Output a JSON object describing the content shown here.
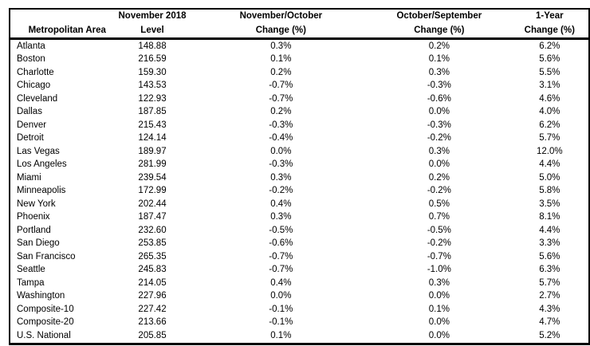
{
  "chart_data": {
    "type": "table",
    "title": "",
    "columns": [
      {
        "line1": "",
        "line2": "Metropolitan Area"
      },
      {
        "line1": "November 2018",
        "line2": "Level"
      },
      {
        "line1": "November/October",
        "line2": "Change (%)"
      },
      {
        "line1": "October/September",
        "line2": "Change (%)"
      },
      {
        "line1": "1-Year",
        "line2": "Change (%)"
      }
    ],
    "rows": [
      [
        "Atlanta",
        "148.88",
        "0.3%",
        "0.2%",
        "6.2%"
      ],
      [
        "Boston",
        "216.59",
        "0.1%",
        "0.1%",
        "5.6%"
      ],
      [
        "Charlotte",
        "159.30",
        "0.2%",
        "0.3%",
        "5.5%"
      ],
      [
        "Chicago",
        "143.53",
        "-0.7%",
        "-0.3%",
        "3.1%"
      ],
      [
        "Cleveland",
        "122.93",
        "-0.7%",
        "-0.6%",
        "4.6%"
      ],
      [
        "Dallas",
        "187.85",
        "0.2%",
        "0.0%",
        "4.0%"
      ],
      [
        "Denver",
        "215.43",
        "-0.3%",
        "-0.3%",
        "6.2%"
      ],
      [
        "Detroit",
        "124.14",
        "-0.4%",
        "-0.2%",
        "5.7%"
      ],
      [
        "Las Vegas",
        "189.97",
        "0.0%",
        "0.3%",
        "12.0%"
      ],
      [
        "Los Angeles",
        "281.99",
        "-0.3%",
        "0.0%",
        "4.4%"
      ],
      [
        "Miami",
        "239.54",
        "0.3%",
        "0.2%",
        "5.0%"
      ],
      [
        "Minneapolis",
        "172.99",
        "-0.2%",
        "-0.2%",
        "5.8%"
      ],
      [
        "New York",
        "202.44",
        "0.4%",
        "0.5%",
        "3.5%"
      ],
      [
        "Phoenix",
        "187.47",
        "0.3%",
        "0.7%",
        "8.1%"
      ],
      [
        "Portland",
        "232.60",
        "-0.5%",
        "-0.5%",
        "4.4%"
      ],
      [
        "San Diego",
        "253.85",
        "-0.6%",
        "-0.2%",
        "3.3%"
      ],
      [
        "San Francisco",
        "265.35",
        "-0.7%",
        "-0.7%",
        "5.6%"
      ],
      [
        "Seattle",
        "245.83",
        "-0.7%",
        "-1.0%",
        "6.3%"
      ],
      [
        "Tampa",
        "214.05",
        "0.4%",
        "0.3%",
        "5.7%"
      ],
      [
        "Washington",
        "227.96",
        "0.0%",
        "0.0%",
        "2.7%"
      ],
      [
        "Composite-10",
        "227.42",
        "-0.1%",
        "0.1%",
        "4.3%"
      ],
      [
        "Composite-20",
        "213.66",
        "-0.1%",
        "0.0%",
        "4.7%"
      ],
      [
        "U.S. National",
        "205.85",
        "0.1%",
        "0.0%",
        "5.2%"
      ]
    ],
    "layout": {
      "grid": "none",
      "header_separator": true,
      "outer_border": true
    }
  },
  "colors": {
    "text": "#000000",
    "border": "#000000",
    "background": "#ffffff"
  },
  "cell_names": [
    "cell-metro-area",
    "cell-level",
    "cell-nov-oct-change",
    "cell-oct-sep-change",
    "cell-1yr-change"
  ]
}
